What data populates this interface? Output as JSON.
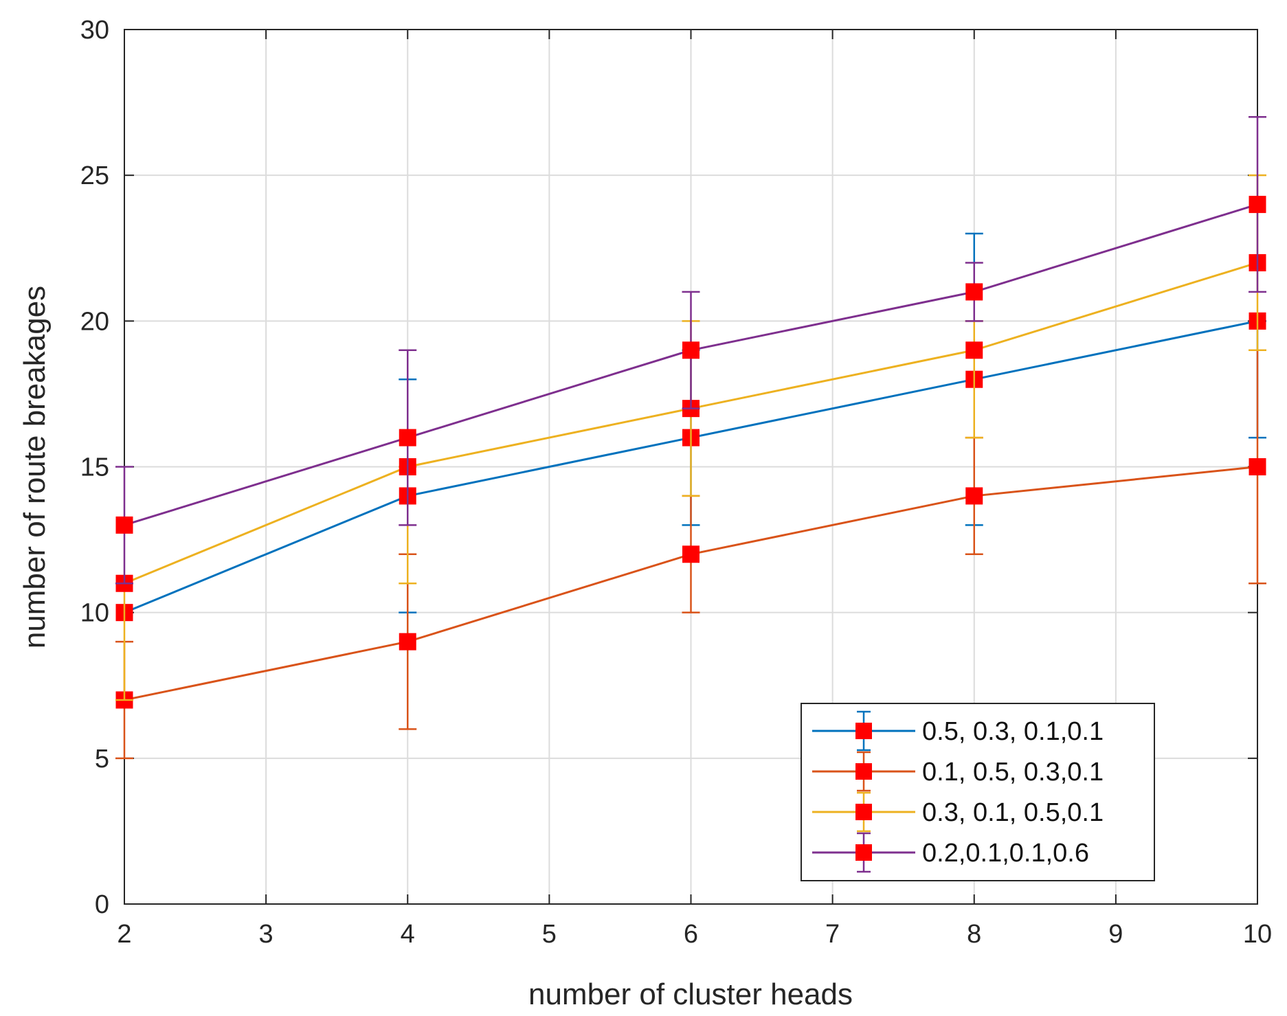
{
  "chart_data": {
    "type": "line",
    "title": "",
    "xlabel": "number of cluster heads",
    "ylabel": "number of route breakages",
    "xlim": [
      2,
      10
    ],
    "ylim": [
      0,
      30
    ],
    "xticks": [
      2,
      3,
      4,
      5,
      6,
      7,
      8,
      9,
      10
    ],
    "yticks": [
      0,
      5,
      10,
      15,
      20,
      25,
      30
    ],
    "grid": true,
    "legend_position": "bottom-right",
    "marker": "square",
    "marker_color": "#ff0000",
    "x": [
      2,
      4,
      6,
      8,
      10
    ],
    "series": [
      {
        "name": "0.5, 0.3, 0.1,0.1",
        "color": "#0072bd",
        "values": [
          10,
          14,
          16,
          18,
          20
        ],
        "error_low": [
          11,
          10,
          13,
          13,
          16
        ],
        "error_high": [
          11,
          18,
          19,
          23,
          20
        ]
      },
      {
        "name": "0.1, 0.5, 0.3,0.1",
        "color": "#d95319",
        "values": [
          7,
          9,
          12,
          14,
          15
        ],
        "error_low": [
          5,
          6,
          10,
          12,
          11
        ],
        "error_high": [
          9,
          12,
          14,
          16,
          19
        ]
      },
      {
        "name": "0.3, 0.1, 0.5,0.1",
        "color": "#edb120",
        "values": [
          11,
          15,
          17,
          19,
          22
        ],
        "error_low": [
          7,
          11,
          14,
          16,
          19
        ],
        "error_high": [
          11,
          15,
          20,
          20,
          25
        ]
      },
      {
        "name": "0.2,0.1,0.1,0.6",
        "color": "#7e2f8e",
        "values": [
          13,
          16,
          19,
          21,
          24
        ],
        "error_low": [
          11,
          13,
          17,
          20,
          21
        ],
        "error_high": [
          15,
          19,
          21,
          22,
          27
        ]
      }
    ]
  }
}
